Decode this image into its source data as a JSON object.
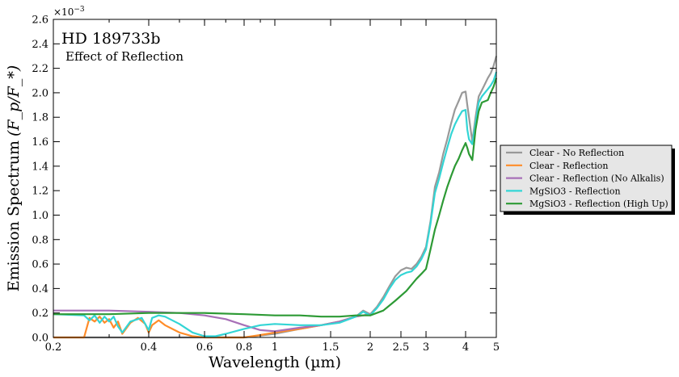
{
  "chart_data": {
    "type": "line",
    "title": "HD 189733b",
    "subtitle": "Effect of Reflection",
    "xlabel": "Wavelength (µm)",
    "ylabel": "Emission Spectrum",
    "ylabel_math": "(F_p/F_*)",
    "y_offset_label": "×10",
    "y_offset_exp": "−3",
    "x_scale": "log",
    "xlim": [
      0.2,
      5
    ],
    "ylim": [
      0,
      2.6
    ],
    "x_ticks": [
      0.2,
      0.4,
      0.6,
      0.8,
      1,
      1.5,
      2,
      2.5,
      3,
      4,
      5
    ],
    "x_tick_labels": [
      "0.2",
      "0.4",
      "0.6",
      "0.8",
      "1",
      "1.5",
      "2",
      "2.5",
      "3",
      "4",
      "5"
    ],
    "y_ticks": [
      0,
      0.2,
      0.4,
      0.6,
      0.8,
      1,
      1.2,
      1.4,
      1.6,
      1.8,
      2,
      2.2,
      2.4,
      2.6
    ],
    "y_tick_labels": [
      "0.0",
      "0.2",
      "0.4",
      "0.6",
      "0.8",
      "1.0",
      "1.2",
      "1.4",
      "1.6",
      "1.8",
      "2.0",
      "2.2",
      "2.4",
      "2.6"
    ],
    "grid": false,
    "legend_position": "right-outside",
    "series": [
      {
        "name": "Clear - No Reflection",
        "color": "#999999",
        "x": [
          0.2,
          0.5,
          0.8,
          1.0,
          1.2,
          1.4,
          1.6,
          1.8,
          1.9,
          2.0,
          2.1,
          2.2,
          2.3,
          2.4,
          2.5,
          2.6,
          2.7,
          2.8,
          2.9,
          3.0,
          3.1,
          3.2,
          3.3,
          3.4,
          3.5,
          3.6,
          3.7,
          3.8,
          3.9,
          4.0,
          4.05,
          4.1,
          4.2,
          4.3,
          4.4,
          4.5,
          4.6,
          4.7,
          4.8,
          4.9,
          5.0
        ],
        "y": [
          0.0,
          0.0,
          0.0,
          0.03,
          0.07,
          0.1,
          0.13,
          0.17,
          0.22,
          0.19,
          0.25,
          0.33,
          0.42,
          0.5,
          0.55,
          0.57,
          0.56,
          0.6,
          0.66,
          0.74,
          0.95,
          1.23,
          1.35,
          1.5,
          1.62,
          1.75,
          1.86,
          1.93,
          2.0,
          2.01,
          1.9,
          1.8,
          1.6,
          1.8,
          1.97,
          2.02,
          2.07,
          2.12,
          2.16,
          2.22,
          2.3
        ]
      },
      {
        "name": "Clear - Reflection",
        "color": "#ff8c29",
        "x": [
          0.2,
          0.25,
          0.26,
          0.27,
          0.28,
          0.29,
          0.3,
          0.31,
          0.32,
          0.33,
          0.35,
          0.37,
          0.39,
          0.4,
          0.41,
          0.43,
          0.45,
          0.5,
          0.55,
          0.6,
          0.7,
          0.8,
          0.9,
          1.0,
          1.2,
          1.4,
          1.6,
          1.8,
          2.0
        ],
        "y": [
          0.0,
          0.0,
          0.16,
          0.13,
          0.17,
          0.12,
          0.15,
          0.08,
          0.13,
          0.03,
          0.12,
          0.16,
          0.11,
          0.04,
          0.1,
          0.14,
          0.1,
          0.04,
          0.01,
          0.0,
          0.0,
          0.0,
          0.02,
          0.04,
          0.07,
          0.1,
          0.13,
          0.17,
          0.19
        ]
      },
      {
        "name": "Clear - Reflection (No Alkalis)",
        "color": "#a770b7",
        "x": [
          0.2,
          0.3,
          0.4,
          0.5,
          0.6,
          0.7,
          0.8,
          0.9,
          1.0,
          1.2,
          1.4,
          1.6,
          1.8,
          2.0
        ],
        "y": [
          0.22,
          0.22,
          0.21,
          0.2,
          0.18,
          0.15,
          0.1,
          0.06,
          0.05,
          0.08,
          0.1,
          0.13,
          0.17,
          0.19
        ]
      },
      {
        "name": "MgSiO3 - Reflection",
        "color": "#33d5d5",
        "x": [
          0.2,
          0.25,
          0.26,
          0.27,
          0.28,
          0.29,
          0.3,
          0.31,
          0.32,
          0.33,
          0.35,
          0.38,
          0.4,
          0.41,
          0.43,
          0.45,
          0.5,
          0.55,
          0.6,
          0.65,
          0.7,
          0.8,
          0.9,
          1.0,
          1.2,
          1.4,
          1.6,
          1.8,
          1.9,
          2.0,
          2.1,
          2.2,
          2.3,
          2.4,
          2.5,
          2.6,
          2.7,
          2.8,
          2.9,
          3.0,
          3.1,
          3.2,
          3.3,
          3.4,
          3.5,
          3.6,
          3.7,
          3.8,
          3.9,
          4.0,
          4.05,
          4.1,
          4.2,
          4.3,
          4.4,
          4.5,
          4.6,
          4.7,
          4.8,
          4.9,
          5.0
        ],
        "y": [
          0.19,
          0.18,
          0.14,
          0.18,
          0.12,
          0.17,
          0.13,
          0.17,
          0.09,
          0.04,
          0.13,
          0.16,
          0.06,
          0.16,
          0.18,
          0.17,
          0.11,
          0.04,
          0.01,
          0.01,
          0.03,
          0.07,
          0.1,
          0.11,
          0.1,
          0.1,
          0.12,
          0.17,
          0.21,
          0.18,
          0.24,
          0.31,
          0.4,
          0.47,
          0.51,
          0.53,
          0.54,
          0.58,
          0.64,
          0.72,
          0.93,
          1.18,
          1.3,
          1.43,
          1.55,
          1.66,
          1.74,
          1.8,
          1.85,
          1.86,
          1.7,
          1.62,
          1.58,
          1.75,
          1.92,
          1.97,
          2.0,
          2.03,
          2.06,
          2.1,
          2.17
        ]
      },
      {
        "name": "MgSiO3 - Reflection (High Up)",
        "color": "#2d9a35",
        "x": [
          0.2,
          0.3,
          0.4,
          0.5,
          0.6,
          0.8,
          1.0,
          1.2,
          1.4,
          1.6,
          1.8,
          2.0,
          2.2,
          2.4,
          2.6,
          2.8,
          2.9,
          3.0,
          3.1,
          3.2,
          3.3,
          3.4,
          3.5,
          3.6,
          3.7,
          3.8,
          3.9,
          4.0,
          4.05,
          4.1,
          4.2,
          4.3,
          4.4,
          4.5,
          4.6,
          4.7,
          4.8,
          4.9,
          5.0
        ],
        "y": [
          0.19,
          0.19,
          0.2,
          0.2,
          0.2,
          0.19,
          0.18,
          0.18,
          0.17,
          0.17,
          0.18,
          0.18,
          0.22,
          0.3,
          0.38,
          0.48,
          0.52,
          0.56,
          0.72,
          0.88,
          1.0,
          1.12,
          1.23,
          1.32,
          1.4,
          1.46,
          1.53,
          1.59,
          1.55,
          1.5,
          1.45,
          1.7,
          1.85,
          1.92,
          1.93,
          1.94,
          2.0,
          2.05,
          2.12
        ]
      }
    ]
  }
}
